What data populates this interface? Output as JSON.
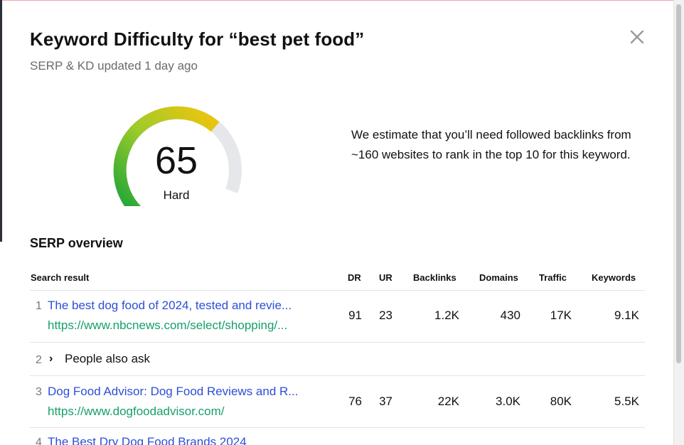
{
  "header": {
    "title": "Keyword Difficulty for “best pet food”",
    "subtitle": "SERP & KD updated 1 day ago",
    "close_icon": "close-icon"
  },
  "gauge": {
    "value": "65",
    "label": "Hard",
    "score_fraction": 0.65,
    "colors": {
      "green": "#1faa3a",
      "yellow": "#f2c40c",
      "track": "#e6e7eb"
    }
  },
  "estimate": {
    "text": "We estimate that you’ll need followed backlinks from ~160 websites to rank in the top 10 for this keyword."
  },
  "serp": {
    "title": "SERP overview",
    "columns": {
      "result": "Search result",
      "dr": "DR",
      "ur": "UR",
      "backlinks": "Backlinks",
      "domains": "Domains",
      "traffic": "Traffic",
      "keywords": "Keywords"
    },
    "rows": [
      {
        "num": "1",
        "title": "The best dog food of 2024, tested and revie...",
        "url": "https://www.nbcnews.com/select/shopping/...",
        "dr": "91",
        "ur": "23",
        "backlinks": "1.2K",
        "domains": "430",
        "traffic": "17K",
        "keywords": "9.1K"
      },
      {
        "num": "2",
        "label": "People also ask",
        "chevron": "›"
      },
      {
        "num": "3",
        "title": "Dog Food Advisor: Dog Food Reviews and R...",
        "url": "https://www.dogfoodadvisor.com/",
        "dr": "76",
        "ur": "37",
        "backlinks": "22K",
        "domains": "3.0K",
        "traffic": "80K",
        "keywords": "5.5K"
      },
      {
        "num": "4",
        "title": "The Best Dry Dog Food Brands 2024"
      }
    ]
  },
  "colors": {
    "link": "#2b4fd8",
    "url": "#16a06a",
    "muted": "#6b6b6b"
  }
}
